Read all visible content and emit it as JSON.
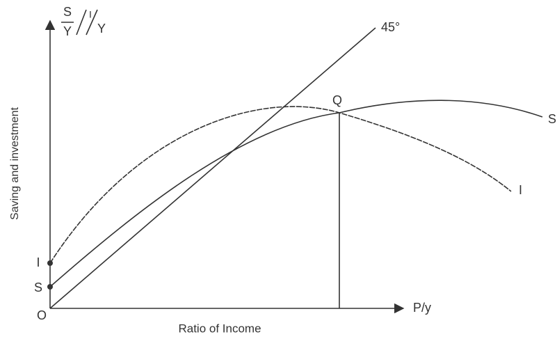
{
  "axes": {
    "y_symbol": {
      "num1": "S",
      "den1": "Y",
      "num2": "I",
      "den2": "Y"
    },
    "y_label": "Saving and investment",
    "x_symbol": "P/y",
    "x_label": "Ratio of Income",
    "origin": "O"
  },
  "lines": {
    "diagonal": "45°",
    "intersection": "Q",
    "saving_curve": "S",
    "investment_curve": "I"
  },
  "intercepts": {
    "investment": "I",
    "saving": "S"
  }
}
